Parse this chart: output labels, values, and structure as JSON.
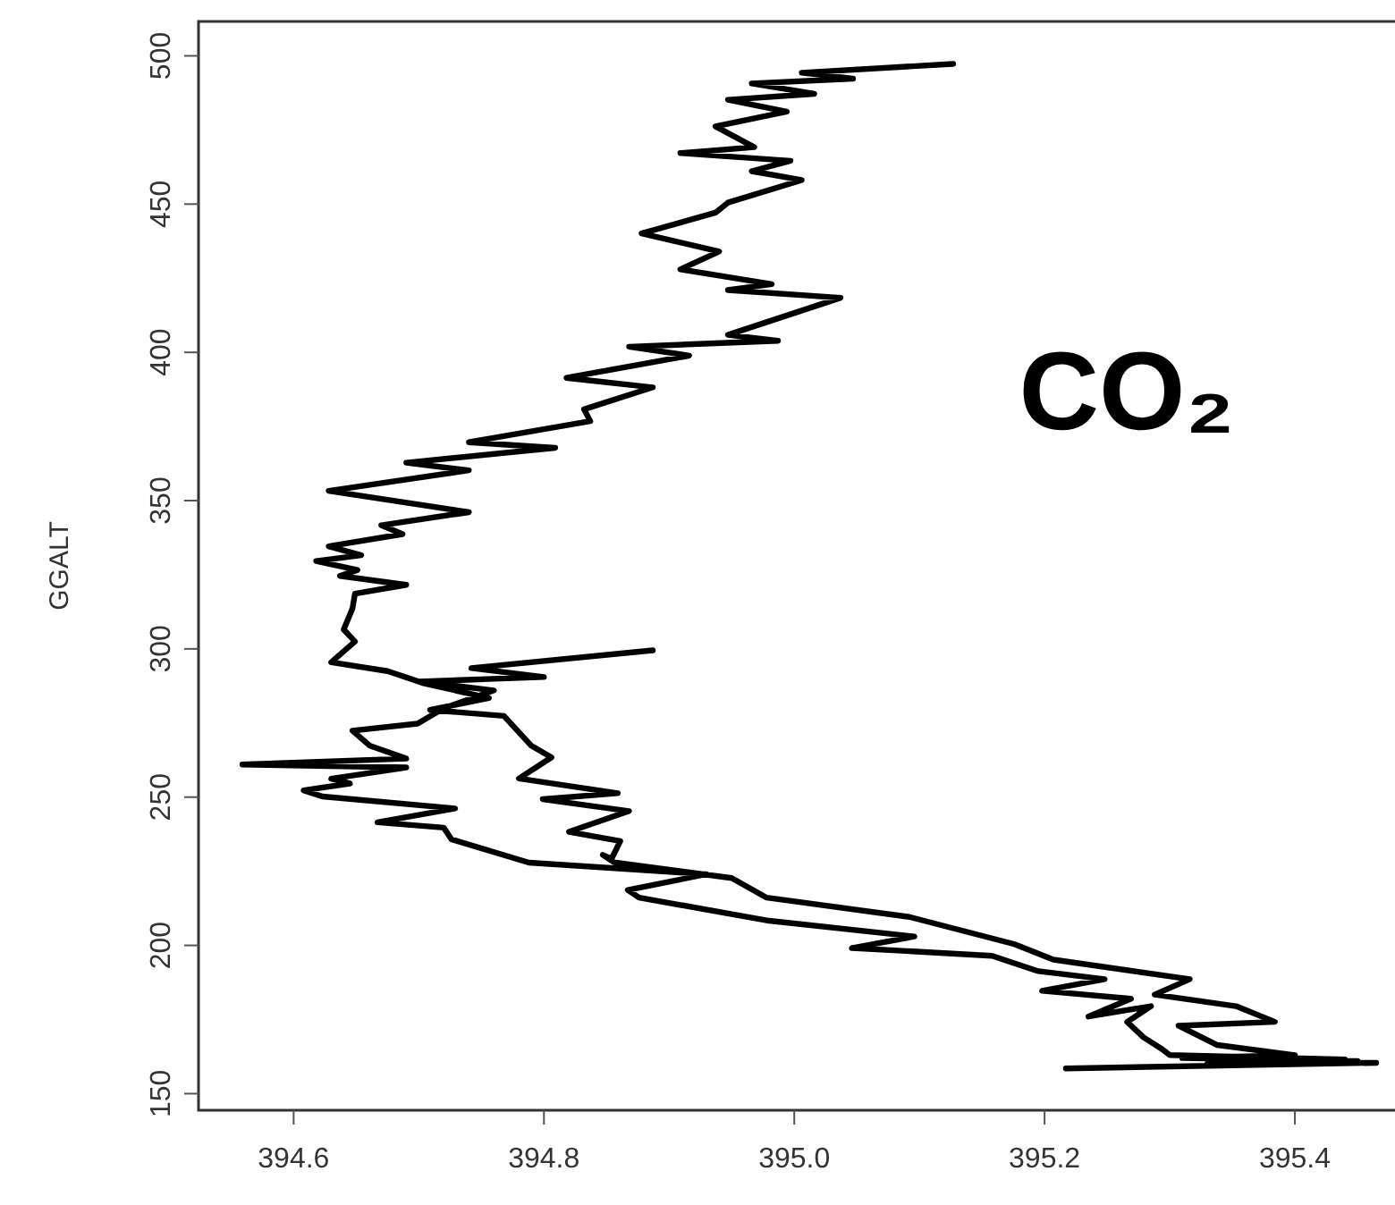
{
  "chart_data": {
    "type": "line",
    "ylabel": "GGALT",
    "annotations": [
      "CO₂"
    ],
    "xlim": [
      394.524,
      395.48
    ],
    "ylim": [
      144.4,
      511.6
    ],
    "xticks": [
      {
        "value": 394.6,
        "label": "394.6"
      },
      {
        "value": 394.8,
        "label": "394.8"
      },
      {
        "value": 395.0,
        "label": "395.0"
      },
      {
        "value": 395.2,
        "label": "395.2"
      },
      {
        "value": 395.4,
        "label": "395.4"
      }
    ],
    "yticks": [
      150,
      200,
      250,
      300,
      350,
      400,
      450,
      500
    ],
    "grid": false,
    "marker": "none",
    "line_style": "solid",
    "series": [
      {
        "color": "#000000",
        "x": [
          395.127,
          395.006,
          395.047,
          394.966,
          395.016,
          394.947,
          394.994,
          394.937,
          394.968,
          394.909,
          394.997,
          394.966,
          395.006,
          394.947,
          394.937,
          394.878,
          394.94,
          394.909,
          394.982,
          394.947,
          395.037,
          394.947,
          394.987,
          394.868,
          394.916,
          394.818,
          394.887,
          394.832,
          394.837,
          394.74,
          394.809,
          394.69,
          394.74,
          394.628,
          394.74,
          394.67,
          394.687,
          394.628,
          394.654,
          394.618,
          394.651,
          394.637,
          394.69,
          394.649,
          394.647,
          394.64,
          394.649,
          394.63,
          394.675,
          394.704,
          394.756,
          394.709,
          394.768,
          394.79,
          394.806,
          394.78,
          394.859,
          394.799,
          394.868,
          394.82,
          394.861,
          394.854,
          394.847,
          394.856,
          394.95,
          394.978,
          395.092,
          395.176,
          395.207,
          395.316,
          395.288,
          395.353,
          395.384,
          395.307,
          395.338,
          395.4,
          395.31,
          395.45,
          395.33,
          395.465,
          395.217,
          395.35,
          395.44,
          395.3,
          395.294,
          395.279,
          395.266,
          395.285,
          395.235,
          395.269,
          395.198,
          395.248,
          395.195,
          395.158,
          395.046,
          395.096,
          394.98,
          394.876,
          394.867,
          394.93,
          394.788,
          394.726,
          394.72,
          394.667,
          394.729,
          394.623,
          394.608,
          394.645,
          394.63,
          394.69,
          394.559,
          394.69,
          394.661,
          394.647,
          394.699,
          394.72,
          394.76,
          394.7,
          394.8,
          394.742,
          394.887
        ],
        "values": [
          497.3,
          494.3,
          492.3,
          490.7,
          487.2,
          485.2,
          481.2,
          476.2,
          469.2,
          467.2,
          464.6,
          461.1,
          458.1,
          450.5,
          447.1,
          440.1,
          434.0,
          428.0,
          423.0,
          421.0,
          418.4,
          405.9,
          403.9,
          401.9,
          398.9,
          391.4,
          388.2,
          380.8,
          376.8,
          369.7,
          367.8,
          362.8,
          360.2,
          353.3,
          346.1,
          341.7,
          338.7,
          334.6,
          331.6,
          329.6,
          326.6,
          324.6,
          321.6,
          318.6,
          313.6,
          306.5,
          302.5,
          295.5,
          292.5,
          288.4,
          283.4,
          279.4,
          277.4,
          267.3,
          263.4,
          256.3,
          251.3,
          249.3,
          245.3,
          238.3,
          235.2,
          229.2,
          230.5,
          228.0,
          222.7,
          216.1,
          209.6,
          200.4,
          195.2,
          188.6,
          183.4,
          179.5,
          174.2,
          172.9,
          166.4,
          163.0,
          162.0,
          161.0,
          160.0,
          160.4,
          158.5,
          159.5,
          161.5,
          163.0,
          165.0,
          169.0,
          174.2,
          179.5,
          176.0,
          182.0,
          184.7,
          188.6,
          191.3,
          196.5,
          199.1,
          203.0,
          208.3,
          216.1,
          218.7,
          224.0,
          227.9,
          235.8,
          239.7,
          241.5,
          246.2,
          250.2,
          252.3,
          254.6,
          256.2,
          260.0,
          261.0,
          263.0,
          267.3,
          272.4,
          274.8,
          280.0,
          286.0,
          289.0,
          290.5,
          293.5,
          299.5
        ]
      }
    ]
  }
}
